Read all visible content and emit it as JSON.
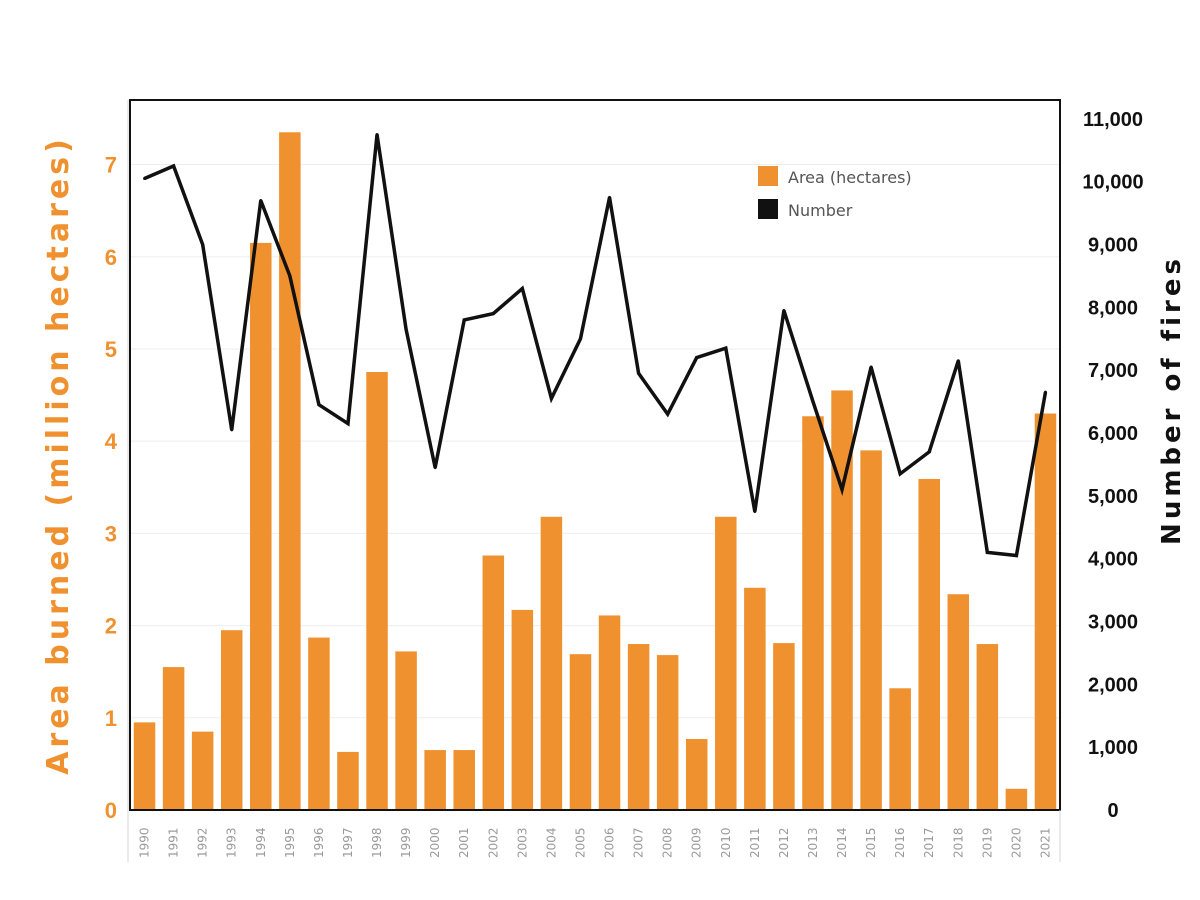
{
  "chart_data": {
    "type": "bar",
    "x": [
      "1990",
      "1991",
      "1992",
      "1993",
      "1994",
      "1995",
      "1996",
      "1997",
      "1998",
      "1999",
      "2000",
      "2001",
      "2002",
      "2003",
      "2004",
      "2005",
      "2006",
      "2007",
      "2008",
      "2009",
      "2010",
      "2011",
      "2012",
      "2013",
      "2014",
      "2015",
      "2016",
      "2017",
      "2018",
      "2019",
      "2020",
      "2021"
    ],
    "series": [
      {
        "name": "Area (hectares)",
        "type": "bar",
        "axis": "left",
        "color": "#f0912f",
        "values": [
          0.95,
          1.55,
          0.85,
          1.95,
          6.15,
          7.35,
          1.87,
          0.63,
          4.75,
          1.72,
          0.65,
          0.65,
          2.76,
          2.17,
          3.18,
          1.69,
          2.11,
          1.8,
          1.68,
          0.77,
          3.18,
          2.41,
          1.81,
          4.27,
          4.55,
          3.9,
          1.32,
          3.59,
          2.34,
          1.8,
          0.23,
          4.3
        ]
      },
      {
        "name": "Number",
        "type": "line",
        "axis": "right",
        "color": "#111111",
        "values": [
          10050,
          10250,
          9000,
          6050,
          9700,
          8500,
          6450,
          6150,
          10750,
          7650,
          5450,
          7800,
          7900,
          8300,
          6550,
          7500,
          9750,
          6950,
          6300,
          7200,
          7350,
          4750,
          7950,
          6500,
          5100,
          7050,
          5350,
          5700,
          7150,
          4100,
          4050,
          6650
        ]
      }
    ],
    "ylabel_left": "Area burned (million hectares)",
    "ylabel_right": "Number of fires",
    "ylim_left": [
      0,
      7.7
    ],
    "yticks_left": [
      "0",
      "1",
      "2",
      "3",
      "4",
      "5",
      "6",
      "7"
    ],
    "ylim_right": [
      0,
      11300
    ],
    "yticks_right": [
      "0",
      "1,000",
      "2,000",
      "3,000",
      "4,000",
      "5,000",
      "6,000",
      "7,000",
      "8,000",
      "9,000",
      "10,000",
      "11,000"
    ],
    "legend_position": "top-right",
    "grid": true
  }
}
